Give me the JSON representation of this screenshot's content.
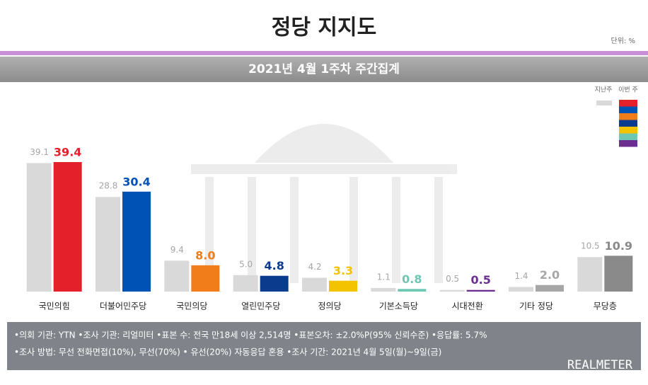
{
  "chart_data": {
    "type": "bar",
    "title": "정당 지지도",
    "unit": "단위: %",
    "subtitle": "2021년 4월 1주차 주간집계",
    "categories": [
      "국민의힘",
      "더불어민주당",
      "국민의당",
      "열린민주당",
      "정의당",
      "기본소득당",
      "시대전환",
      "기타 정당",
      "무당층"
    ],
    "series": [
      {
        "name": "지난주",
        "color": "#d9d9d9",
        "values": [
          39.1,
          28.8,
          9.4,
          5.0,
          4.2,
          1.1,
          0.5,
          1.4,
          10.5
        ],
        "value_labels": [
          "39.1",
          "28.8",
          "9.4",
          "5.0",
          "4.2",
          "1.1",
          "0.5",
          "1.4",
          "10.5"
        ]
      },
      {
        "name": "이번 주",
        "colors": [
          "#e4202b",
          "#0052b4",
          "#f07c1a",
          "#0a3b8c",
          "#f4c300",
          "#6ec7b3",
          "#6b2d91",
          "#a6a6a6",
          "#8a8a8a"
        ],
        "values": [
          39.4,
          30.4,
          8.0,
          4.8,
          3.3,
          0.8,
          0.5,
          2.0,
          10.9
        ],
        "value_labels": [
          "39.4",
          "30.4",
          "8.0",
          "4.8",
          "3.3",
          "0.8",
          "0.5",
          "2.0",
          "10.9"
        ]
      }
    ],
    "notes": [
      "•의회 기관: YTN •조사 기관: 리얼미터 •표본 수: 전국 만18세 이상 2,514명 •표본오차: ±2.0%P(95% 신뢰수준) •응답률: 5.7%",
      "•조사 방법: 무선 전화면접(10%), 무선(70%) • 유선(20%) 자동응답 혼용  •조사 기간: 2021년 4월 5일(월)~9일(금)"
    ],
    "source": "REALMETER"
  }
}
